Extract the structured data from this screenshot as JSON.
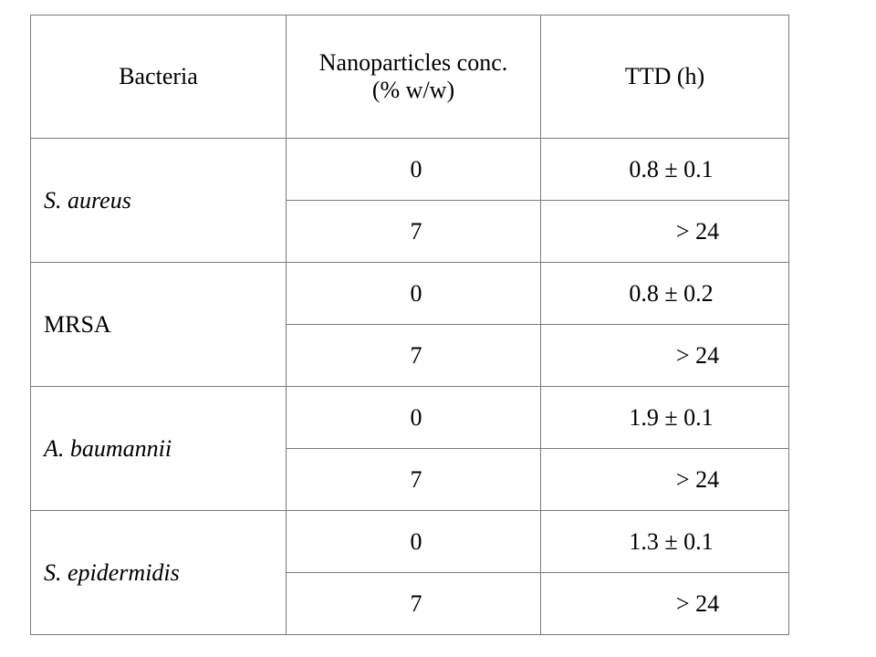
{
  "table": {
    "headers": {
      "bacteria": "Bacteria",
      "concentration_line1": "Nanoparticles conc.",
      "concentration_line2": "(% w/w)",
      "ttd": "TTD (h)"
    },
    "groups": [
      {
        "bacteria": "S. aureus",
        "italic": true,
        "rows": [
          {
            "conc": "0",
            "ttd": "0.8 ± 0.1"
          },
          {
            "conc": "7",
            "ttd": "> 24"
          }
        ]
      },
      {
        "bacteria": "MRSA",
        "italic": false,
        "rows": [
          {
            "conc": "0",
            "ttd": "0.8 ± 0.2"
          },
          {
            "conc": "7",
            "ttd": "> 24"
          }
        ]
      },
      {
        "bacteria": "A. baumannii",
        "italic": true,
        "rows": [
          {
            "conc": "0",
            "ttd": "1.9 ± 0.1"
          },
          {
            "conc": "7",
            "ttd": "> 24"
          }
        ]
      },
      {
        "bacteria": "S. epidermidis",
        "italic": true,
        "rows": [
          {
            "conc": "0",
            "ttd": "1.3 ± 0.1"
          },
          {
            "conc": "7",
            "ttd": "> 24"
          }
        ]
      }
    ]
  }
}
